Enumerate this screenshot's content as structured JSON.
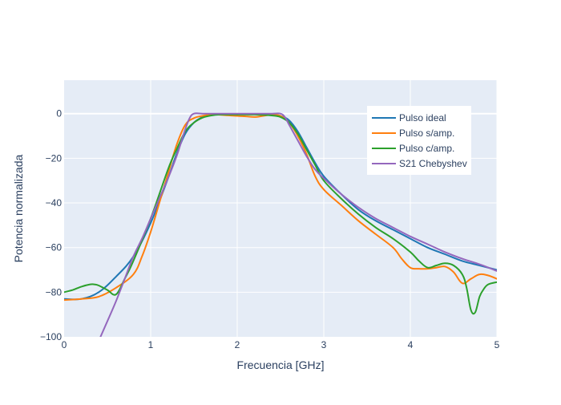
{
  "chart_data": {
    "type": "line",
    "title": "",
    "xlabel": "Frecuencia [GHz]",
    "ylabel": "Potencia normalizada",
    "xlim": [
      0,
      5
    ],
    "ylim": [
      -100,
      15
    ],
    "xticks": [
      0,
      1,
      2,
      3,
      4,
      5
    ],
    "yticks": [
      -100,
      -80,
      -60,
      -40,
      -20,
      0
    ],
    "xtick_labels": [
      "0",
      "1",
      "2",
      "3",
      "4",
      "5"
    ],
    "ytick_labels": [
      "−100",
      "−80",
      "−60",
      "−40",
      "−20",
      "0"
    ],
    "grid": true,
    "legend_position": "top-right",
    "plot_background": "#e5ecf6",
    "series": [
      {
        "name": "Pulso ideal",
        "color": "#1f77b4",
        "x": [
          0,
          0.2,
          0.4,
          0.6,
          0.8,
          1.0,
          1.2,
          1.3,
          1.4,
          1.5,
          1.6,
          1.7,
          1.8,
          2.0,
          2.2,
          2.4,
          2.5,
          2.6,
          2.7,
          2.8,
          2.9,
          3.0,
          3.2,
          3.4,
          3.6,
          3.8,
          4.0,
          4.2,
          4.4,
          4.6,
          4.8,
          5.0
        ],
        "y": [
          -83,
          -83,
          -80,
          -73,
          -64,
          -49,
          -29,
          -18,
          -9,
          -4,
          -1.5,
          -0.5,
          -0.2,
          -0.2,
          -0.2,
          -0.4,
          -1,
          -3,
          -8,
          -15,
          -22,
          -28,
          -36,
          -43,
          -48,
          -52,
          -56,
          -60,
          -63,
          -66,
          -68,
          -70
        ]
      },
      {
        "name": "Pulso s/amp.",
        "color": "#ff7f0e",
        "x": [
          0,
          0.2,
          0.4,
          0.6,
          0.8,
          0.9,
          1.0,
          1.1,
          1.2,
          1.3,
          1.4,
          1.5,
          1.6,
          1.7,
          1.8,
          2.0,
          2.1,
          2.2,
          2.3,
          2.4,
          2.5,
          2.6,
          2.7,
          2.8,
          2.9,
          3.0,
          3.2,
          3.4,
          3.6,
          3.8,
          3.9,
          4.0,
          4.1,
          4.2,
          4.3,
          4.4,
          4.5,
          4.6,
          4.7,
          4.8,
          4.9,
          5.0
        ],
        "y": [
          -83.5,
          -83,
          -82,
          -78,
          -72,
          -64,
          -53,
          -40,
          -27,
          -14,
          -5,
          -2,
          -1,
          -0.3,
          -0.5,
          -1,
          -1.2,
          -1.5,
          -1,
          -0.5,
          -1,
          -4,
          -10,
          -18,
          -28,
          -34,
          -41,
          -48,
          -54,
          -60,
          -65,
          -69,
          -69.5,
          -69.5,
          -69,
          -68.5,
          -71,
          -76,
          -74,
          -72,
          -72.5,
          -74
        ]
      },
      {
        "name": "Pulso c/amp.",
        "color": "#2ca02c",
        "x": [
          0,
          0.1,
          0.2,
          0.3,
          0.35,
          0.4,
          0.5,
          0.6,
          0.7,
          0.8,
          1.0,
          1.2,
          1.3,
          1.4,
          1.5,
          1.6,
          1.7,
          1.8,
          2.0,
          2.2,
          2.4,
          2.5,
          2.6,
          2.7,
          2.8,
          2.9,
          3.0,
          3.2,
          3.4,
          3.6,
          3.8,
          4.0,
          4.1,
          4.2,
          4.3,
          4.4,
          4.5,
          4.6,
          4.65,
          4.7,
          4.75,
          4.8,
          4.85,
          4.9,
          5.0
        ],
        "y": [
          -80,
          -79,
          -77.5,
          -76.5,
          -76.5,
          -77,
          -79,
          -81,
          -74,
          -66,
          -47,
          -25,
          -16,
          -8,
          -4,
          -1.8,
          -0.8,
          -0.4,
          -0.4,
          -0.4,
          -0.8,
          -1.5,
          -4,
          -9,
          -16,
          -23,
          -30,
          -38,
          -45,
          -51,
          -56,
          -62,
          -66,
          -69,
          -68,
          -67,
          -68,
          -72,
          -78,
          -88,
          -89,
          -82,
          -78.5,
          -76.5,
          -75.5
        ]
      },
      {
        "name": "S21 Chebyshev",
        "color": "#9467bd",
        "x": [
          0.42,
          0.5,
          0.6,
          0.7,
          0.8,
          0.9,
          1.0,
          1.1,
          1.2,
          1.3,
          1.35,
          1.4,
          1.45,
          1.5,
          1.6,
          1.7,
          1.8,
          2.0,
          2.2,
          2.4,
          2.5,
          2.55,
          2.6,
          2.7,
          2.8,
          2.9,
          3.0,
          3.2,
          3.4,
          3.6,
          3.8,
          4.0,
          4.2,
          4.4,
          4.6,
          4.8,
          5.0
        ],
        "y": [
          -100,
          -93,
          -84,
          -74,
          -64,
          -56,
          -47,
          -38,
          -29,
          -19,
          -13,
          -7,
          -2,
          0,
          0,
          0,
          0,
          0,
          0,
          0,
          0,
          -1.5,
          -5,
          -12,
          -19,
          -25,
          -29,
          -36,
          -42,
          -47,
          -51,
          -55,
          -58.5,
          -62,
          -65,
          -67.5,
          -70.5
        ]
      }
    ]
  }
}
